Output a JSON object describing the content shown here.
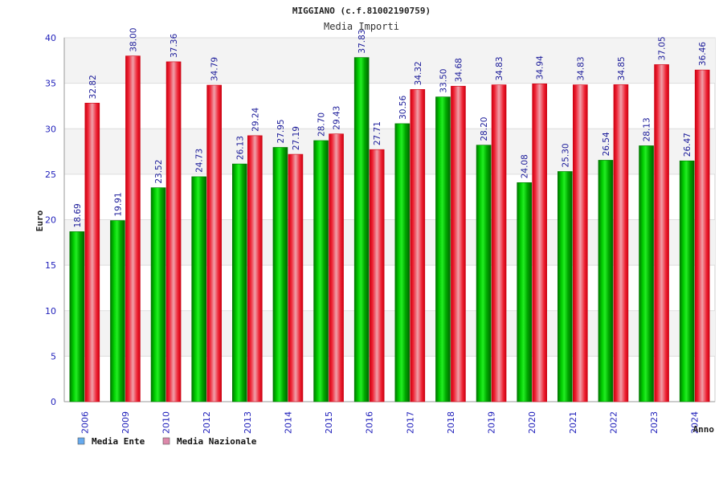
{
  "chart_data": {
    "type": "bar",
    "title": "MIGGIANO (c.f.81002190759)",
    "subtitle": "Media Importi",
    "xlabel": "Anno",
    "ylabel": "Euro",
    "ylim": [
      0,
      40
    ],
    "yticks": [
      "0",
      "5",
      "10",
      "15",
      "20",
      "25",
      "30",
      "35",
      "40"
    ],
    "grid": true,
    "legend_position": "bottom-left",
    "categories": [
      "2006",
      "2009",
      "2010",
      "2012",
      "2013",
      "2014",
      "2015",
      "2016",
      "2017",
      "2018",
      "2019",
      "2020",
      "2021",
      "2022",
      "2023",
      "2024"
    ],
    "series": [
      {
        "name": "Media Ente",
        "color": "#00bb00",
        "legend_color": "#66aaee",
        "values": [
          18.69,
          19.91,
          23.52,
          24.73,
          26.13,
          27.95,
          28.7,
          37.83,
          30.56,
          33.5,
          28.2,
          24.08,
          25.3,
          26.54,
          28.13,
          26.47
        ],
        "labels": [
          "18.69",
          "19.91",
          "23.52",
          "24.73",
          "26.13",
          "27.95",
          "28.70",
          "37.83",
          "30.56",
          "33.50",
          "28.20",
          "24.08",
          "25.30",
          "26.54",
          "28.13",
          "26.47"
        ]
      },
      {
        "name": "Media Nazionale",
        "color": "#ee2233",
        "legend_color": "#dd88aa",
        "values": [
          32.82,
          38.0,
          37.36,
          34.79,
          29.24,
          27.19,
          29.43,
          27.71,
          34.32,
          34.68,
          34.83,
          34.94,
          34.83,
          34.85,
          37.05,
          36.46
        ],
        "labels": [
          "32.82",
          "38.00",
          "37.36",
          "34.79",
          "29.24",
          "27.19",
          "29.43",
          "27.71",
          "34.32",
          "34.68",
          "34.83",
          "34.94",
          "34.83",
          "34.85",
          "37.05",
          "36.46"
        ]
      }
    ]
  }
}
